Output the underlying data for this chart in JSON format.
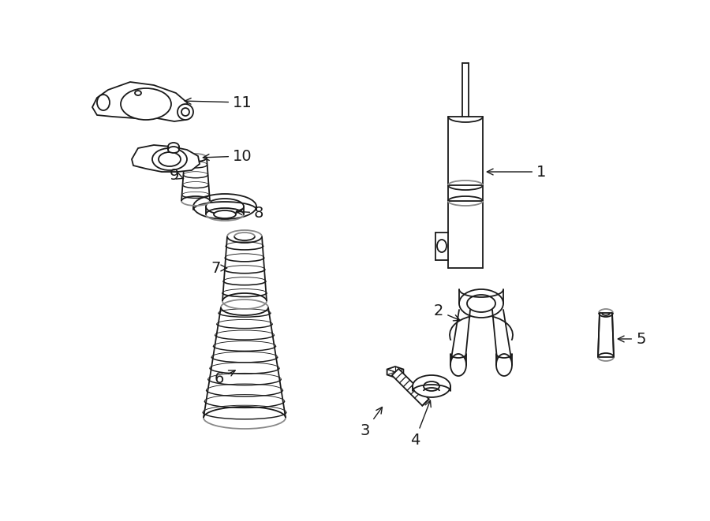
{
  "bg_color": "#ffffff",
  "line_color": "#1a1a1a",
  "line_width": 1.3,
  "figsize": [
    9.0,
    6.61
  ],
  "dpi": 100
}
